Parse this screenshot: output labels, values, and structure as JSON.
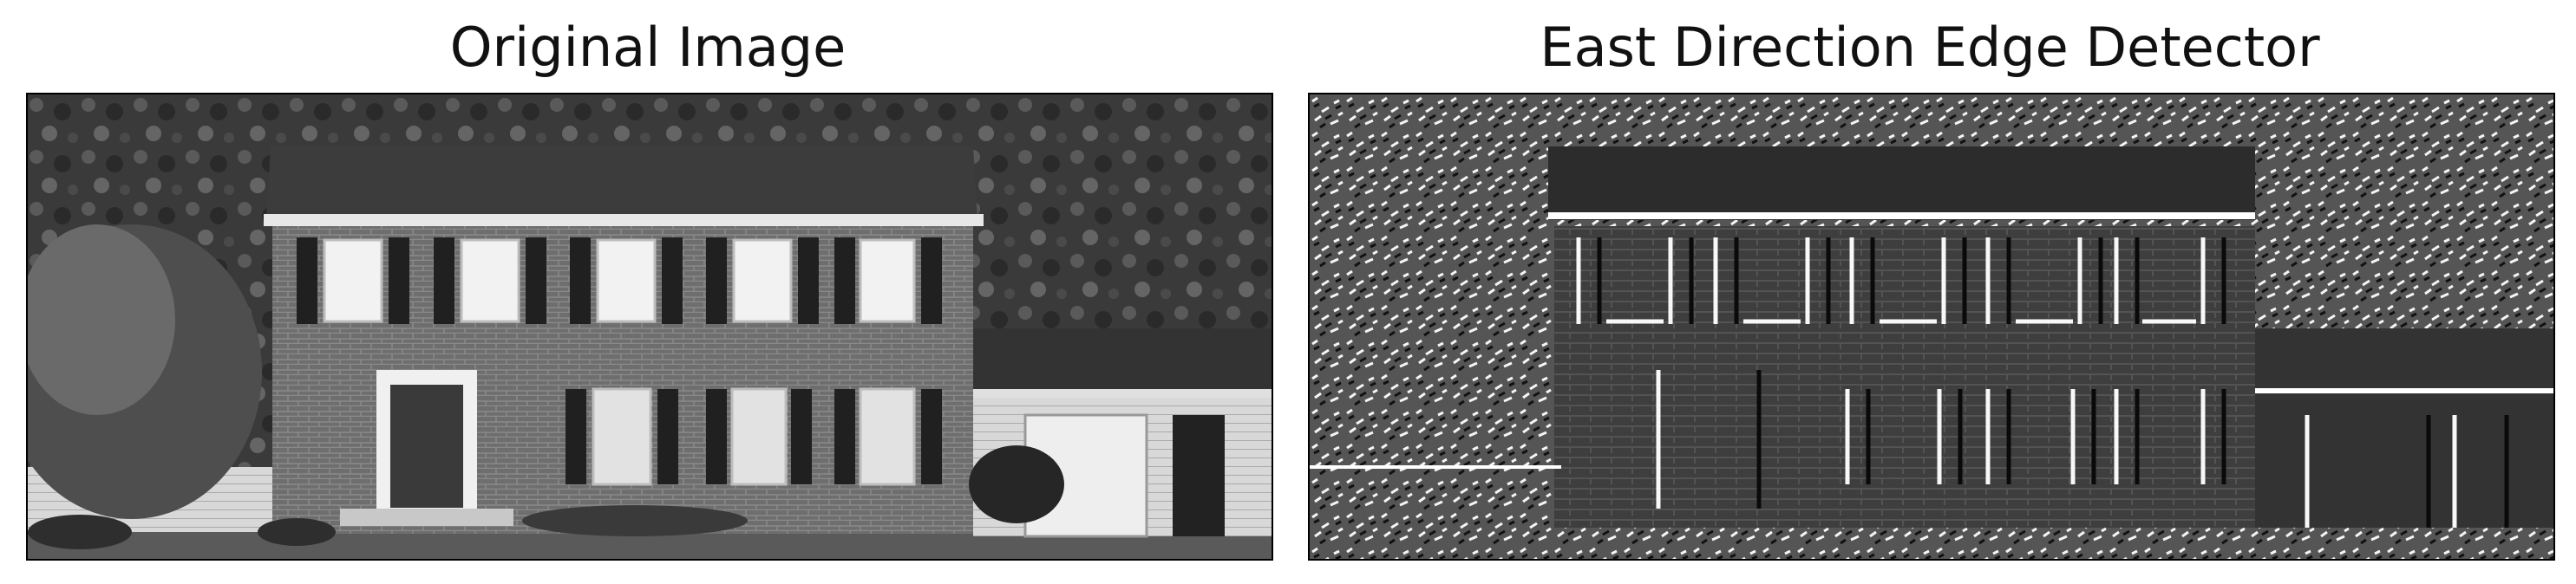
{
  "panels": [
    {
      "title": "Original Image"
    },
    {
      "title": "East Direction Edge Detector"
    }
  ]
}
